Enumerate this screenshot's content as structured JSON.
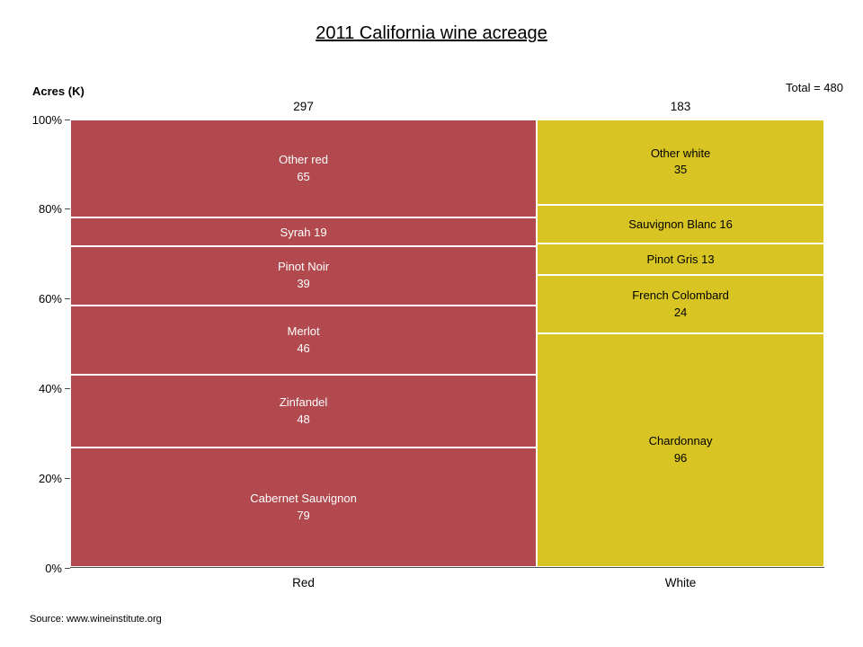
{
  "title": "2011 California wine acreage",
  "total_label": "Total = 480",
  "y_axis_label": "Acres (K)",
  "source": "Source: www.wineinstitute.org",
  "chart_data": {
    "type": "bar",
    "subtype": "mosaic-100%-stacked",
    "title": "2011 California wine acreage",
    "ylabel": "Acres (K)",
    "ylim": [
      0,
      100
    ],
    "grid": false,
    "legend_position": "none",
    "y_ticks": [
      "100%",
      "80%",
      "60%",
      "40%",
      "20%",
      "0%"
    ],
    "grand_total": 480,
    "columns": [
      {
        "category": "Red",
        "total": 297,
        "total_label": "297",
        "color": "#b1494e",
        "text_color": "#ffffff",
        "segments": [
          {
            "label": "Other red",
            "value": 65
          },
          {
            "label": "Syrah",
            "value": 19
          },
          {
            "label": "Pinot Noir",
            "value": 39
          },
          {
            "label": "Merlot",
            "value": 46
          },
          {
            "label": "Zinfandel",
            "value": 48
          },
          {
            "label": "Cabernet Sauvignon",
            "value": 79
          }
        ]
      },
      {
        "category": "White",
        "total": 183,
        "total_label": "183",
        "color": "#d8c422",
        "text_color": "#000000",
        "segments": [
          {
            "label": "Other white",
            "value": 35
          },
          {
            "label": "Sauvignon Blanc",
            "value": 16
          },
          {
            "label": "Pinot Gris",
            "value": 13
          },
          {
            "label": "French Colombard",
            "value": 24
          },
          {
            "label": "Chardonnay",
            "value": 96
          }
        ]
      }
    ]
  }
}
